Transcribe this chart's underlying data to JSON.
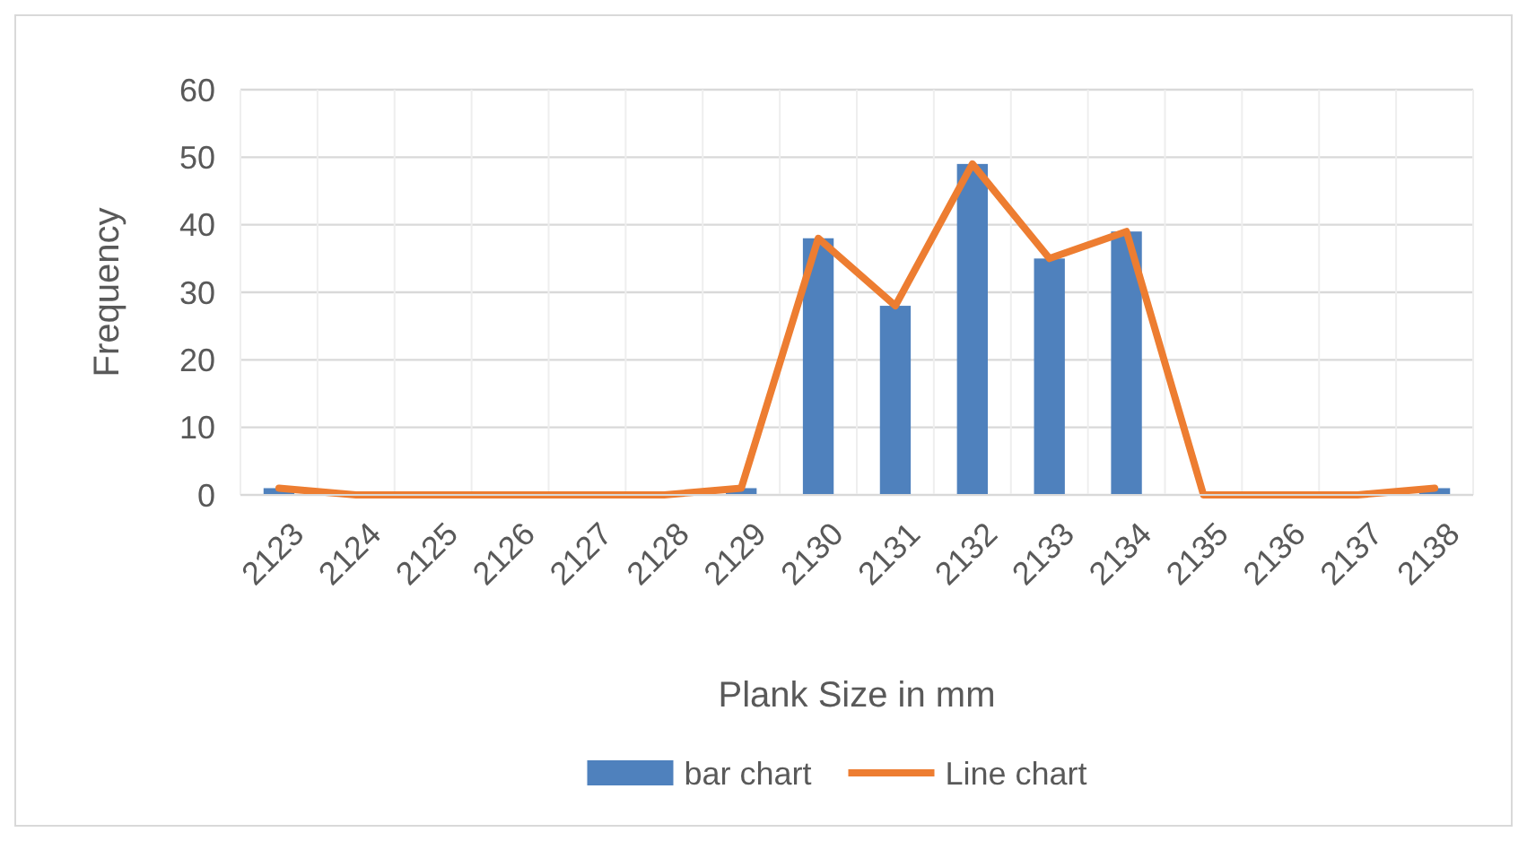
{
  "chart_data": {
    "type": "bar",
    "xlabel": "Plank Size in mm",
    "ylabel": "Frequency",
    "categories": [
      "2123",
      "2124",
      "2125",
      "2126",
      "2127",
      "2128",
      "2129",
      "2130",
      "2131",
      "2132",
      "2133",
      "2134",
      "2135",
      "2136",
      "2137",
      "2138"
    ],
    "series": [
      {
        "name": "bar chart",
        "color": "#4f81bd",
        "values": [
          1,
          0,
          0,
          0,
          0,
          0,
          1,
          38,
          28,
          49,
          35,
          39,
          0,
          0,
          0,
          1
        ]
      },
      {
        "name": "Line chart",
        "type": "line",
        "color": "#ed7d31",
        "values": [
          1,
          0,
          0,
          0,
          0,
          0,
          1,
          38,
          28,
          49,
          35,
          39,
          0,
          0,
          0,
          1
        ]
      }
    ],
    "ylim": [
      0,
      60
    ],
    "yticks": [
      0,
      10,
      20,
      30,
      40,
      50,
      60
    ],
    "grid": true,
    "legend": "bottom",
    "marker": "none",
    "line_style": "solid"
  }
}
